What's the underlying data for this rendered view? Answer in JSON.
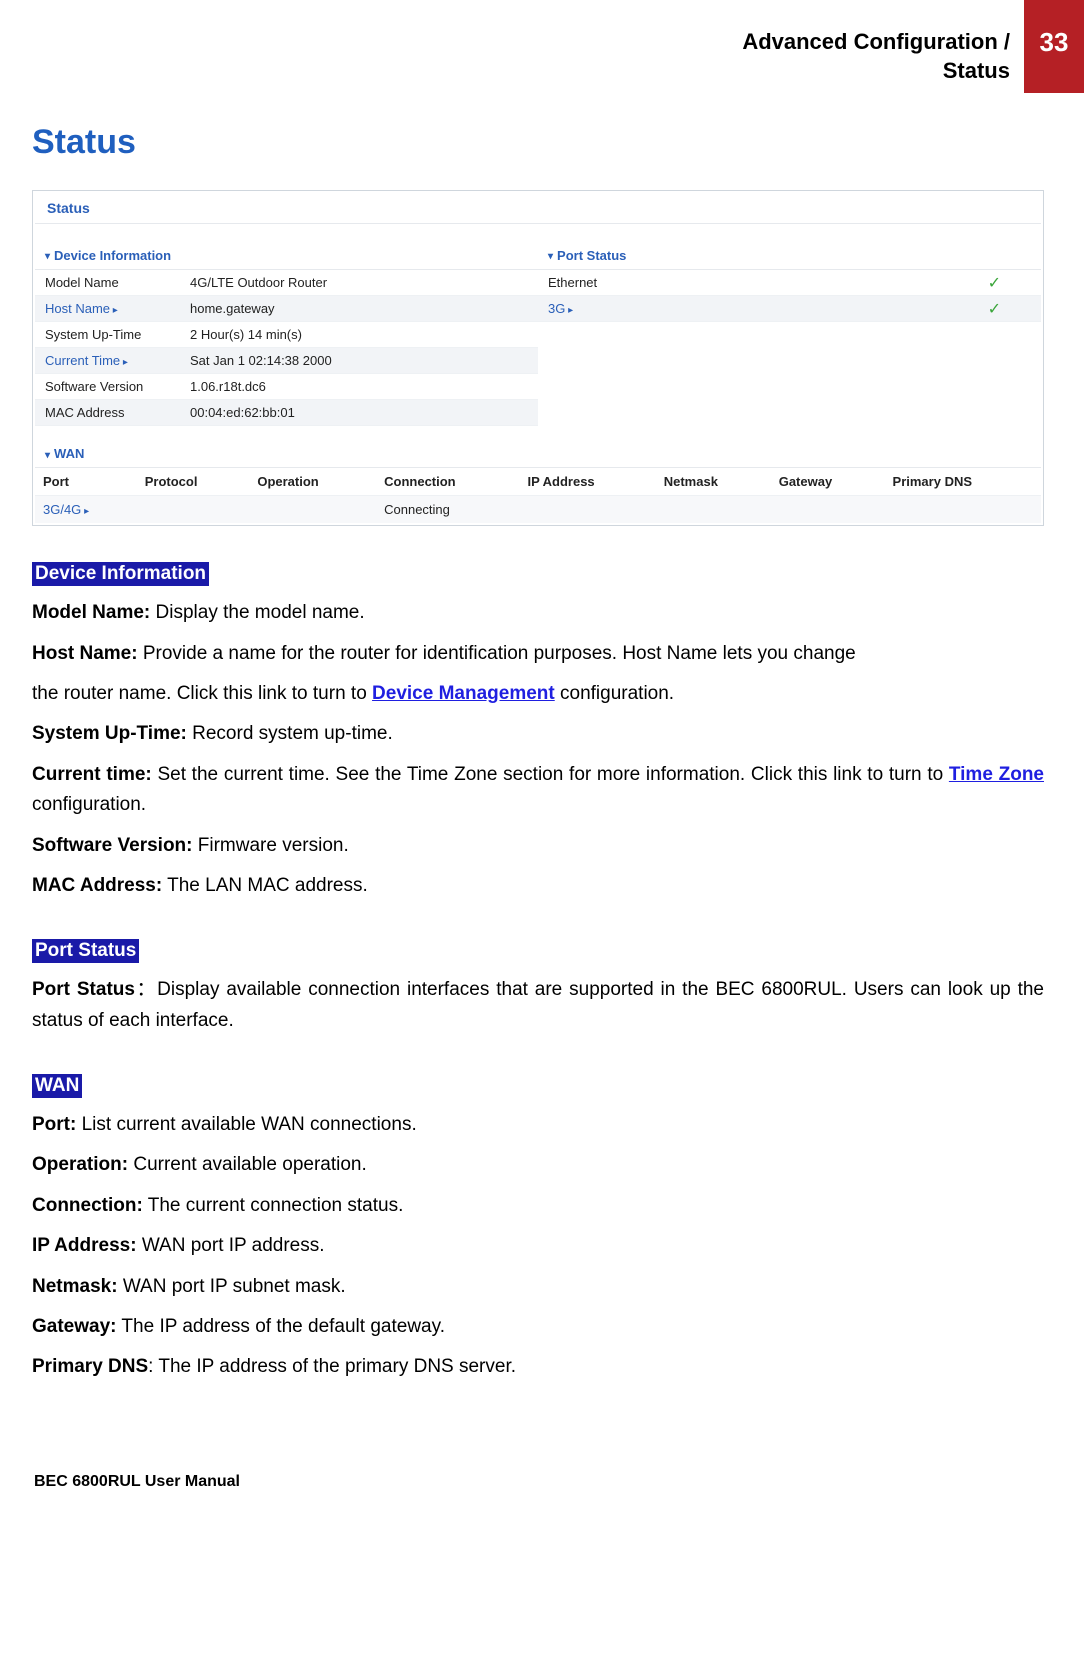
{
  "header": {
    "breadcrumb_line1": "Advanced Configuration /",
    "breadcrumb_line2": "Status",
    "page_number": "33"
  },
  "title": "Status",
  "screenshot": {
    "title": "Status",
    "device_info": {
      "heading": "Device Information",
      "rows": [
        {
          "label": "Model Name",
          "value": "4G/LTE Outdoor Router",
          "link": false,
          "alt": false
        },
        {
          "label": "Host Name",
          "value": "home.gateway",
          "link": true,
          "alt": true
        },
        {
          "label": "System Up-Time",
          "value": "2 Hour(s) 14 min(s)",
          "link": false,
          "alt": false
        },
        {
          "label": "Current Time",
          "value": "Sat Jan 1 02:14:38 2000",
          "link": true,
          "alt": true
        },
        {
          "label": "Software Version",
          "value": "1.06.r18t.dc6",
          "link": false,
          "alt": false
        },
        {
          "label": "MAC Address",
          "value": "00:04:ed:62:bb:01",
          "link": false,
          "alt": true
        }
      ]
    },
    "port_status": {
      "heading": "Port Status",
      "rows": [
        {
          "label": "Ethernet",
          "check": true,
          "link": false,
          "alt": false
        },
        {
          "label": "3G",
          "check": true,
          "link": true,
          "alt": true
        }
      ]
    },
    "wan": {
      "heading": "WAN",
      "columns": [
        "Port",
        "Protocol",
        "Operation",
        "Connection",
        "IP Address",
        "Netmask",
        "Gateway",
        "Primary DNS"
      ],
      "row": {
        "port": "3G/4G",
        "protocol": "",
        "operation": "",
        "connection": "Connecting",
        "ip": "",
        "netmask": "",
        "gateway": "",
        "dns": ""
      }
    }
  },
  "sections": {
    "device_info": {
      "tag": "Device Information",
      "model_b": "Model Name:",
      "model_t": " Display the model name.",
      "host_b": "Host Name:",
      "host_t1": " Provide a name for the router for identification purposes. Host Name lets you change",
      "host_t2a": "the router name. Click this link to turn to ",
      "host_link": "Device Management",
      "host_t2b": " configuration.",
      "uptime_b": "System Up-Time:",
      "uptime_t": " Record system up-time.",
      "curr_b": "Current time:",
      "curr_t1": " Set the current time. See the Time Zone section for more information. Click this link to turn to ",
      "curr_link": "Time Zone",
      "curr_t2": " configuration.",
      "soft_b": "Software Version:",
      "soft_t": " Firmware version.",
      "mac_b": "MAC Address:",
      "mac_t": " The LAN MAC address."
    },
    "port_status": {
      "tag": "Port Status",
      "b": "Port Status",
      "t": "：Display available connection interfaces that are supported in the BEC 6800RUL. Users can look up the status of each interface."
    },
    "wan": {
      "tag": "WAN",
      "port_b": "Port:",
      "port_t": " List current available WAN connections.",
      "op_b": "Operation:",
      "op_t": " Current available operation.",
      "conn_b": "Connection:",
      "conn_t": " The current connection status.",
      "ip_b": "IP Address: ",
      "ip_t": " WAN port IP address.",
      "nm_b": "Netmask:",
      "nm_t": " WAN port IP subnet mask.",
      "gw_b": "Gateway:",
      "gw_t": " The IP address of the default gateway.",
      "dns_b": "Primary DNS",
      "dns_t": ": The IP address of the primary DNS server."
    }
  },
  "footer": "BEC 6800RUL User Manual"
}
